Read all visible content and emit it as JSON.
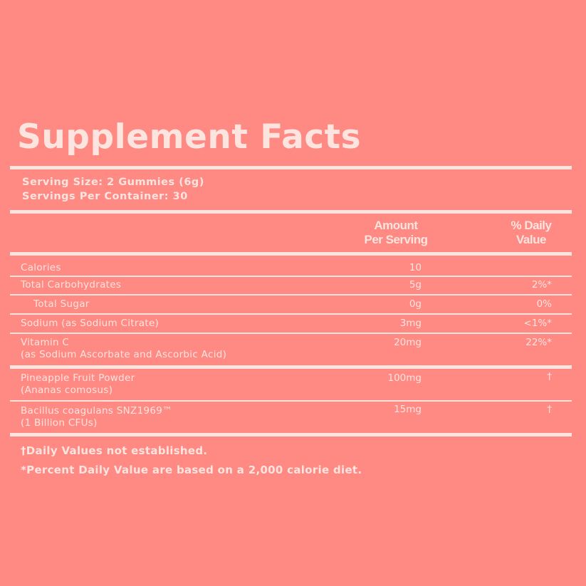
{
  "title": "Supplement Facts",
  "serving_size": "Serving Size: 2 Gummies (6g)",
  "servings_per_container": "Servings Per Container: 30",
  "header": {
    "amount_line1": "Amount",
    "amount_line2": "Per Serving",
    "dv_line1": "% Daily",
    "dv_line2": "Value"
  },
  "rows": [
    {
      "name": "Calories",
      "sub": "",
      "amount": "10",
      "dv": ""
    },
    {
      "name": "Total Carbohydrates",
      "sub": "",
      "amount": "5g",
      "dv": "2%*"
    },
    {
      "name": "Total Sugar",
      "sub": "",
      "amount": "0g",
      "dv": "0%"
    },
    {
      "name": "Sodium (as Sodium Citrate)",
      "sub": "",
      "amount": "3mg",
      "dv": "<1%*"
    },
    {
      "name": "Vitamin C",
      "sub": "(as Sodium Ascorbate and Ascorbic Acid)",
      "amount": "20mg",
      "dv": "22%*"
    },
    {
      "name": "Pineapple Fruit Powder",
      "sub": "(Ananas comosus)",
      "amount": "100mg",
      "dv": "†"
    },
    {
      "name": "Bacillus coagulans SNZ1969™",
      "sub": "(1 Billion CFUs)",
      "amount": "15mg",
      "dv": "†"
    }
  ],
  "footnotes": [
    "†Daily Values not established.",
    "*Percent Daily Value are based on a 2,000 calorie diet."
  ],
  "colors": {
    "background": "#FF8983",
    "text": "#FDE4DF"
  }
}
